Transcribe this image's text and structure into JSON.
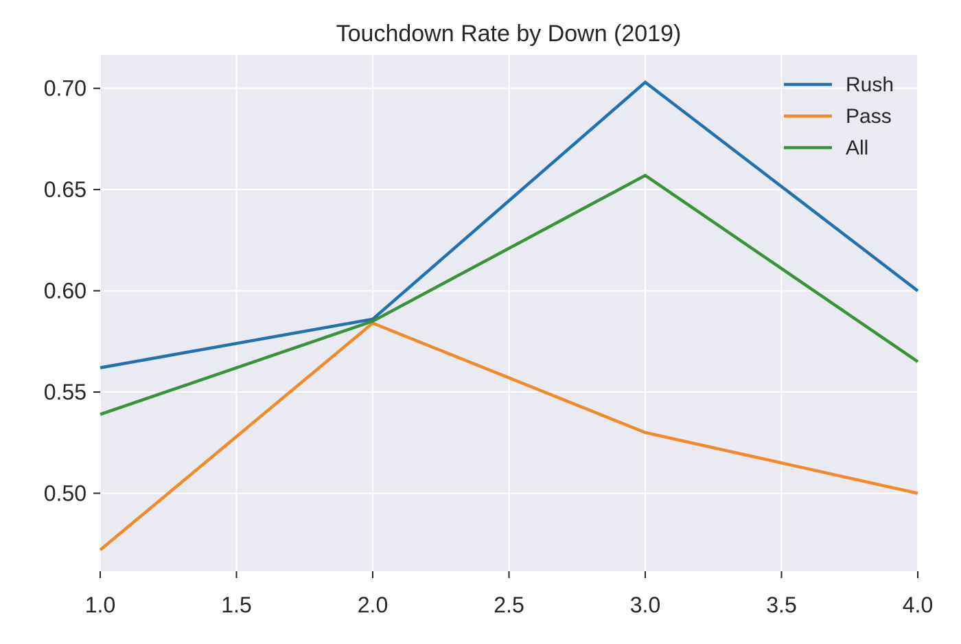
{
  "chart_data": {
    "type": "line",
    "title": "Touchdown Rate by Down (2019)",
    "xlabel": "",
    "ylabel": "",
    "x": [
      1,
      2,
      3,
      4
    ],
    "series": [
      {
        "name": "Rush",
        "color": "#2271b2",
        "values": [
          0.562,
          0.586,
          0.703,
          0.6
        ]
      },
      {
        "name": "Pass",
        "color": "#f28a2b",
        "values": [
          0.472,
          0.584,
          0.53,
          0.5
        ]
      },
      {
        "name": "All",
        "color": "#3a923a",
        "values": [
          0.539,
          0.585,
          0.657,
          0.565
        ]
      }
    ],
    "xlim": [
      1.0,
      4.0
    ],
    "ylim": [
      0.4615,
      0.7165
    ],
    "xticks": [
      1.0,
      1.5,
      2.0,
      2.5,
      3.0,
      3.5,
      4.0
    ],
    "xtick_labels": [
      "1.0",
      "1.5",
      "2.0",
      "2.5",
      "3.0",
      "3.5",
      "4.0"
    ],
    "yticks": [
      0.5,
      0.55,
      0.6,
      0.65,
      0.7
    ],
    "ytick_labels": [
      "0.50",
      "0.55",
      "0.60",
      "0.65",
      "0.70"
    ],
    "grid": true,
    "legend_position": "top-right",
    "background": "#eaeaf2"
  }
}
